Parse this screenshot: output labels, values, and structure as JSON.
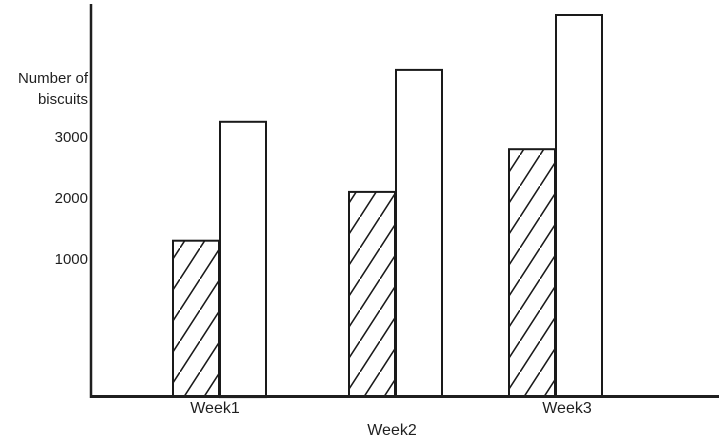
{
  "chart_data": {
    "type": "bar",
    "title": "",
    "ylabel": "Number of biscuits",
    "ylabel_lines": [
      "Number of",
      "biscuits"
    ],
    "xlabel": "",
    "categories": [
      "Week1",
      "Week2",
      "Week3"
    ],
    "series": [
      {
        "name": "hatched bars",
        "style": "diagonal-hatch",
        "values": [
          1300,
          2100,
          2800
        ]
      },
      {
        "name": "plain bars",
        "style": "plain-white",
        "values": [
          3250,
          4100,
          5000
        ]
      }
    ],
    "yticks": [
      1000,
      2000,
      3000
    ],
    "ytick_labels": [
      "1000",
      "2000",
      "3000"
    ],
    "ylim": [
      0,
      5200
    ],
    "grid": "off",
    "legend": "none",
    "colors": {
      "axis": "#1f1f1f",
      "bar_outline": "#1a1a1a",
      "bar_fill": "#ffffff",
      "hatch_stroke": "#1a1a1a",
      "background": "#ffffff",
      "text": "#1f1f1f"
    }
  }
}
